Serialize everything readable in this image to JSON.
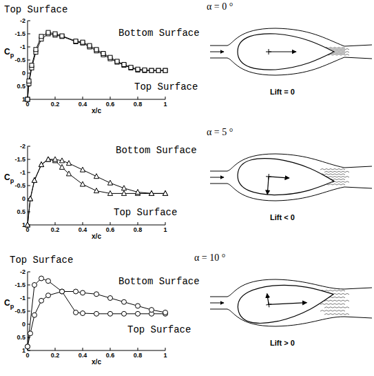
{
  "chart_data": [
    {
      "type": "line",
      "title": "α = 0 °",
      "x_label": "x/c",
      "y_label": "Cp",
      "xlim": [
        0,
        1
      ],
      "xticks": [
        0,
        0.2,
        0.4,
        0.6,
        0.8,
        1
      ],
      "ylim": [
        1,
        -2
      ],
      "yticks": [
        -2,
        -1.5,
        -1,
        -0.5,
        0,
        0.5,
        1
      ],
      "marker": "square",
      "color": "#000000",
      "annotations": [
        "Top Surface",
        "Lift = 0"
      ],
      "series": [
        {
          "name": "Top Surface",
          "x": [
            0,
            0.01,
            0.03,
            0.06,
            0.1,
            0.15,
            0.2,
            0.25,
            0.35,
            0.4,
            0.45,
            0.5,
            0.55,
            0.6,
            0.65,
            0.7,
            0.75,
            0.8,
            0.85,
            0.9,
            0.95,
            1
          ],
          "values": [
            1,
            0.4,
            -0.2,
            -0.8,
            -1.3,
            -1.5,
            -1.45,
            -1.4,
            -1.2,
            -1.15,
            -1.0,
            -0.85,
            -0.7,
            -0.55,
            -0.42,
            -0.3,
            -0.2,
            -0.12,
            -0.1,
            -0.1,
            -0.1,
            -0.1
          ]
        },
        {
          "name": "Bottom Surface",
          "x": [
            0,
            0.01,
            0.03,
            0.06,
            0.1,
            0.15,
            0.2,
            0.25,
            0.35,
            0.4,
            0.45,
            0.5,
            0.55,
            0.6,
            0.65,
            0.7,
            0.75,
            0.8,
            0.85,
            0.9,
            0.95,
            1
          ],
          "values": [
            1,
            0.3,
            -0.3,
            -0.9,
            -1.4,
            -1.55,
            -1.5,
            -1.42,
            -1.22,
            -1.18,
            -1.05,
            -0.9,
            -0.75,
            -0.6,
            -0.45,
            -0.33,
            -0.22,
            -0.15,
            -0.12,
            -0.1,
            -0.1,
            -0.1
          ]
        }
      ]
    },
    {
      "type": "line",
      "title": "α = 5 °",
      "x_label": "x/c",
      "y_label": "Cp",
      "xlim": [
        0,
        1
      ],
      "xticks": [
        0,
        0.2,
        0.4,
        0.6,
        0.8,
        1
      ],
      "ylim": [
        1,
        -2
      ],
      "yticks": [
        -2,
        -1.5,
        -1,
        -0.5,
        0,
        0.5,
        1
      ],
      "marker": "triangle",
      "color": "#000000",
      "annotations": [
        "Lift < 0"
      ],
      "series": [
        {
          "name": "Top Surface",
          "x": [
            0,
            0.02,
            0.05,
            0.1,
            0.15,
            0.2,
            0.25,
            0.3,
            0.4,
            0.5,
            0.6,
            0.7,
            0.8,
            0.9,
            1
          ],
          "values": [
            1,
            0,
            -0.7,
            -1.3,
            -1.5,
            -1.45,
            -1.2,
            -0.95,
            -0.55,
            -0.3,
            -0.2,
            -0.2,
            -0.2,
            -0.2,
            -0.2
          ]
        },
        {
          "name": "Bottom Surface",
          "x": [
            0,
            0.02,
            0.05,
            0.1,
            0.15,
            0.2,
            0.25,
            0.3,
            0.4,
            0.5,
            0.6,
            0.7,
            0.8,
            0.9,
            1
          ],
          "values": [
            1,
            0,
            -0.7,
            -1.3,
            -1.5,
            -1.5,
            -1.45,
            -1.35,
            -1.1,
            -0.85,
            -0.6,
            -0.4,
            -0.25,
            -0.2,
            -0.2
          ]
        }
      ]
    },
    {
      "type": "line",
      "title": "α = 10 °",
      "x_label": "x/c",
      "y_label": "Cp",
      "xlim": [
        0,
        1
      ],
      "xticks": [
        0,
        0.2,
        0.4,
        0.6,
        0.8,
        1
      ],
      "ylim": [
        1,
        -2
      ],
      "yticks": [
        -2,
        -1.5,
        -1,
        -0.5,
        0,
        0.5,
        1
      ],
      "marker": "circle",
      "color": "#000000",
      "annotations": [
        "Top Surface",
        "Lift > 0"
      ],
      "series": [
        {
          "name": "Top Surface",
          "x": [
            0,
            0.05,
            0.1,
            0.15,
            0.25,
            0.35,
            0.4,
            0.5,
            0.6,
            0.7,
            0.8,
            0.9,
            1
          ],
          "values": [
            0.85,
            -1.5,
            -1.75,
            -1.65,
            -1.25,
            -0.45,
            -0.42,
            -0.4,
            -0.4,
            -0.4,
            -0.4,
            -0.4,
            -0.4
          ]
        },
        {
          "name": "Bottom Surface",
          "x": [
            0,
            0.02,
            0.05,
            0.1,
            0.15,
            0.25,
            0.35,
            0.4,
            0.5,
            0.6,
            0.7,
            0.8,
            0.9,
            1
          ],
          "values": [
            0.85,
            0.35,
            -0.35,
            -0.9,
            -1.1,
            -1.25,
            -1.25,
            -1.2,
            -1.15,
            -1.0,
            -0.85,
            -0.7,
            -0.55,
            -0.45
          ]
        }
      ]
    }
  ]
}
